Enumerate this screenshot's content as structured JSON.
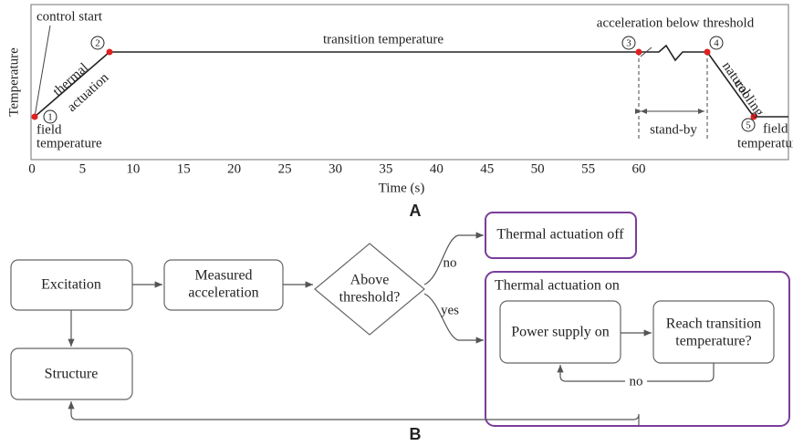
{
  "panel_a": {
    "label": "A",
    "y_axis_label": "Temperature",
    "x_axis_label": "Time (s)",
    "xticks": [
      0,
      5,
      10,
      15,
      20,
      25,
      30,
      35,
      40,
      45,
      50,
      55,
      60
    ],
    "annotations": {
      "control_start": "control start",
      "thermal_actuation": [
        "thermal",
        "actuation"
      ],
      "field_temperature_start": [
        "field",
        "temperature"
      ],
      "transition_temperature": "transition temperature",
      "acceleration_below_threshold": "acceleration below threshold",
      "stand_by": "stand-by",
      "natural_cooling": [
        "natural",
        "cooling"
      ],
      "field_temperature_end": [
        "field",
        "temperature"
      ]
    },
    "markers": [
      "1",
      "2",
      "3",
      "4",
      "5"
    ]
  },
  "panel_b": {
    "label": "B",
    "nodes": {
      "excitation": "Excitation",
      "measured_acceleration": [
        "Measured",
        "acceleration"
      ],
      "above_threshold": [
        "Above",
        "threshold?"
      ],
      "thermal_off": "Thermal actuation off",
      "thermal_on": "Thermal actuation on",
      "power_supply_on": "Power supply on",
      "reach_transition": [
        "Reach transition",
        "temperature?"
      ],
      "structure": "Structure"
    },
    "edge_labels": [
      "no",
      "yes",
      "no"
    ]
  }
}
